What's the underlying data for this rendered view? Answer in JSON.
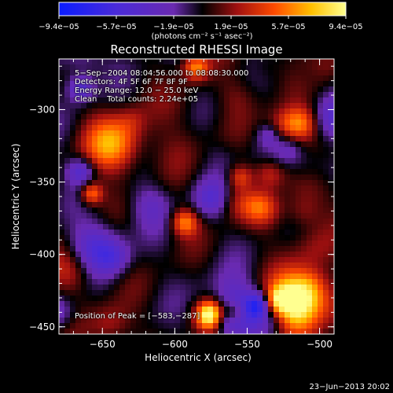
{
  "chart_data": {
    "type": "heatmap",
    "title": "Reconstructed RHESSI Image",
    "xlabel": "Heliocentric X (arcsec)",
    "ylabel": "Heliocentric Y (arcsec)",
    "xlim": [
      -680,
      -490
    ],
    "ylim": [
      -455,
      -265
    ],
    "xticks": [
      -650,
      -600,
      -550,
      -500
    ],
    "xtick_labels": [
      "−650",
      "−600",
      "−550",
      "−500"
    ],
    "yticks": [
      -450,
      -400,
      -350,
      -300
    ],
    "ytick_labels": [
      "−450",
      "−400",
      "−350",
      "−300"
    ],
    "colorbar": {
      "min": -9.4e-05,
      "max": 9.4e-05,
      "tick_labels": [
        "−9.4e−05",
        "−5.7e−05",
        "−1.9e−05",
        "1.9e−05",
        "5.7e−05",
        "9.4e−05"
      ],
      "unit_label": "(photons cm⁻² s⁻¹ asec⁻²)"
    },
    "annotations": {
      "line1": "5−Sep−2004 08:04:56.000 to 08:08:30.000",
      "line2": "Detectors: 4F 5F 6F 7F 8F 9F",
      "line3": "Energy Range: 12.0 − 25.0 keV",
      "line4": "Clean    Total counts: 2.24e+05",
      "peak": "Position of Peak = [−583,−287]"
    },
    "peak": {
      "x": -583,
      "y": -287
    },
    "grid": false,
    "colors": {
      "background": "#000000",
      "low": "#1a32ff",
      "mid": "#5a1aa0",
      "high": "#ffff80"
    }
  },
  "footer": {
    "timestamp": "23−Jun−2013 20:02"
  }
}
